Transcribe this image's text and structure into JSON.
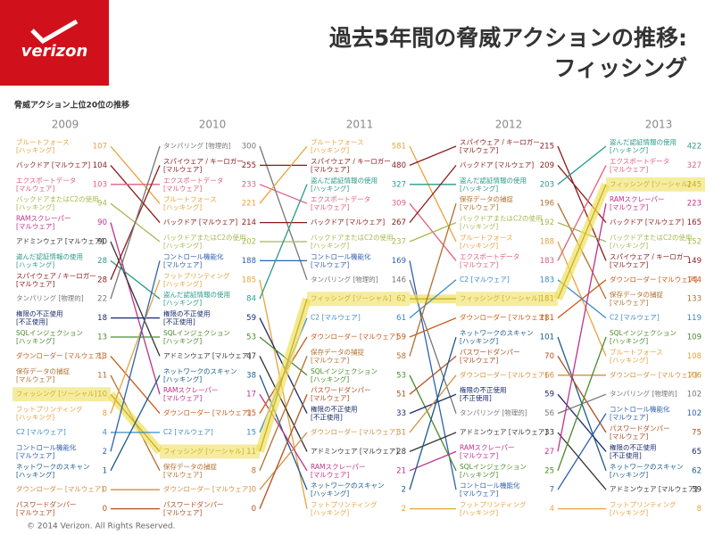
{
  "header": {
    "logo": "verizon",
    "title_line1": "過去5年間の脅威アクションの推移:",
    "title_line2": "フィッシング"
  },
  "subtitle": "脅威アクション上位20位の推移",
  "footer": "© 2014 Verizon. All Rights Reserved.",
  "columns": [
    {
      "year": "2009",
      "items": [
        {
          "label": "ブルートフォース",
          "sub": "[ハッキング]",
          "value": 107,
          "color": "#e8a33c"
        },
        {
          "label": "バックドア [マルウェア]",
          "sub": "",
          "value": 104,
          "color": "#8b1a1a"
        },
        {
          "label": "エクスポートデータ",
          "sub": "[マルウェア]",
          "value": 103,
          "color": "#e06080"
        },
        {
          "label": "バックドアまたはC2の使用",
          "sub": "[ハッキング]",
          "value": 94,
          "color": "#a8b850"
        },
        {
          "label": "RAMスクレーパー",
          "sub": "[マルウェア]",
          "value": 90,
          "color": "#c0308a"
        },
        {
          "label": "アドミンウェア [マルウェア]",
          "sub": "",
          "value": 90,
          "color": "#333333"
        },
        {
          "label": "盗んだ認証情報の使用",
          "sub": "[ハッキング]",
          "value": 28,
          "color": "#2a9a8a"
        },
        {
          "label": "スパイウェア / キーロガー",
          "sub": "[マルウェア]",
          "value": 28,
          "color": "#8b1a1a"
        },
        {
          "label": "タンパリング [物理的]",
          "sub": "",
          "value": 22,
          "color": "#777777"
        },
        {
          "label": "権限の不正使用",
          "sub": "[不正使用]",
          "value": 18,
          "color": "#1a2a6a"
        },
        {
          "label": "SQLインジェクション",
          "sub": "[ハッキング]",
          "value": 13,
          "color": "#4a8a2a"
        },
        {
          "label": "ダウンローダー [マルウェア]",
          "sub": "",
          "value": 13,
          "color": "#c85a1a"
        },
        {
          "label": "保存データの捕捉",
          "sub": "[マルウェア]",
          "value": 11,
          "color": "#b07030"
        },
        {
          "label": "フィッシング [ソーシャル]",
          "sub": "",
          "value": 10,
          "color": "#c8b020",
          "highlight": true
        },
        {
          "label": "フットプリンティング",
          "sub": "[ハッキング]",
          "value": 8,
          "color": "#e8a33c"
        },
        {
          "label": "C2 [マルウェア]",
          "sub": "",
          "value": 4,
          "color": "#3a8ac8"
        },
        {
          "label": "コントロール機能化",
          "sub": "[マルウェア]",
          "value": 2,
          "color": "#3060b0"
        },
        {
          "label": "ネットワークのスキャン",
          "sub": "[ハッキング]",
          "value": 1,
          "color": "#1a5a8a"
        },
        {
          "label": "ダウンローダー [マルウェア]",
          "sub": "",
          "value": 0,
          "color": "#d09040"
        },
        {
          "label": "パスワードダンパー",
          "sub": "[マルウェア]",
          "value": 0,
          "color": "#b05020"
        }
      ]
    },
    {
      "year": "2010",
      "items": [
        {
          "label": "タンパリング [物理的]",
          "sub": "",
          "value": 300,
          "color": "#777777"
        },
        {
          "label": "スパイウェア / キーロガー",
          "sub": "[マルウェア]",
          "value": 255,
          "color": "#8b1a1a"
        },
        {
          "label": "エクスポートデータ",
          "sub": "[マルウェア]",
          "value": 233,
          "color": "#e06080"
        },
        {
          "label": "ブルートフォース",
          "sub": "[ハッキング]",
          "value": 221,
          "color": "#e8a33c"
        },
        {
          "label": "バックドア [マルウェア]",
          "sub": "",
          "value": 214,
          "color": "#8b1a1a"
        },
        {
          "label": "バックドアまたはC2の使用",
          "sub": "[ハッキング]",
          "value": 202,
          "color": "#a8b850"
        },
        {
          "label": "コントロール機能化",
          "sub": "[マルウェア]",
          "value": 188,
          "color": "#3060b0"
        },
        {
          "label": "フットプリンティング",
          "sub": "[ハッキング]",
          "value": 185,
          "color": "#e8a33c"
        },
        {
          "label": "盗んだ認証情報の使用",
          "sub": "[ハッキング]",
          "value": 84,
          "color": "#2a9a8a"
        },
        {
          "label": "権限の不正使用",
          "sub": "[不正使用]",
          "value": 59,
          "color": "#1a2a6a"
        },
        {
          "label": "SQLインジェクション",
          "sub": "[ハッキング]",
          "value": 53,
          "color": "#4a8a2a"
        },
        {
          "label": "アドミンウェア [マルウェア]",
          "sub": "",
          "value": 47,
          "color": "#333333"
        },
        {
          "label": "ネットワークのスキャン",
          "sub": "[ハッキング]",
          "value": 38,
          "color": "#1a5a8a"
        },
        {
          "label": "RAMスクレーパー",
          "sub": "[マルウェア]",
          "value": 17,
          "color": "#c0308a"
        },
        {
          "label": "ダウンローダー [マルウェア]",
          "sub": "",
          "value": 15,
          "color": "#c85a1a"
        },
        {
          "label": "C2 [マルウェア]",
          "sub": "",
          "value": 15,
          "color": "#3a8ac8"
        },
        {
          "label": "フィッシング [ソーシャル]",
          "sub": "",
          "value": 11,
          "color": "#c8b020",
          "highlight": true
        },
        {
          "label": "保存データの捕捉",
          "sub": "[マルウェア]",
          "value": 8,
          "color": "#b07030"
        },
        {
          "label": "ダウンローダー [マルウェア]",
          "sub": "",
          "value": 0,
          "color": "#d09040"
        },
        {
          "label": "パスワードダンパー",
          "sub": "[マルウェア]",
          "value": 0,
          "color": "#b05020"
        }
      ]
    },
    {
      "year": "2011",
      "items": [
        {
          "label": "ブルートフォース",
          "sub": "[ハッキング]",
          "value": 581,
          "color": "#e8a33c"
        },
        {
          "label": "スパイウェア / キーロガー",
          "sub": "[マルウェア]",
          "value": 480,
          "color": "#8b1a1a"
        },
        {
          "label": "盗んだ認証情報の使用",
          "sub": "[ハッキング]",
          "value": 327,
          "color": "#2a9a8a"
        },
        {
          "label": "エクスポートデータ",
          "sub": "[マルウェア]",
          "value": 309,
          "color": "#e06080"
        },
        {
          "label": "バックドア [マルウェア]",
          "sub": "",
          "value": 267,
          "color": "#8b1a1a"
        },
        {
          "label": "バックドアまたはC2の使用",
          "sub": "[ハッキング]",
          "value": 237,
          "color": "#a8b850"
        },
        {
          "label": "コントロール機能化",
          "sub": "[マルウェア]",
          "value": 169,
          "color": "#3060b0"
        },
        {
          "label": "タンパリング [物理的]",
          "sub": "",
          "value": 146,
          "color": "#777777"
        },
        {
          "label": "フィッシング [ソーシャル]",
          "sub": "",
          "value": 62,
          "color": "#c8b020",
          "highlight": true
        },
        {
          "label": "C2 [マルウェア]",
          "sub": "",
          "value": 61,
          "color": "#3a8ac8"
        },
        {
          "label": "ダウンローダー [マルウェア]",
          "sub": "",
          "value": 59,
          "color": "#c85a1a"
        },
        {
          "label": "保存データの捕捉",
          "sub": "[マルウェア]",
          "value": 58,
          "color": "#b07030"
        },
        {
          "label": "SQLインジェクション",
          "sub": "[ハッキング]",
          "value": 53,
          "color": "#4a8a2a"
        },
        {
          "label": "パスワードダンパー",
          "sub": "[マルウェア]",
          "value": 51,
          "color": "#b05020"
        },
        {
          "label": "権限の不正使用",
          "sub": "[不正使用]",
          "value": 33,
          "color": "#1a2a6a"
        },
        {
          "label": "ダウンローダー [マルウェア]",
          "sub": "",
          "value": 31,
          "color": "#d09040"
        },
        {
          "label": "アドミンウェア [マルウェア]",
          "sub": "",
          "value": 28,
          "color": "#333333"
        },
        {
          "label": "RAMスクレーパー",
          "sub": "[マルウェア]",
          "value": 21,
          "color": "#c0308a"
        },
        {
          "label": "ネットワークのスキャン",
          "sub": "[ハッキング]",
          "value": 2,
          "color": "#1a5a8a"
        },
        {
          "label": "フットプリンティング",
          "sub": "[ハッキング]",
          "value": 2,
          "color": "#e8a33c"
        }
      ]
    },
    {
      "year": "2012",
      "items": [
        {
          "label": "スパイウェア / キーロガー",
          "sub": "[マルウェア]",
          "value": 215,
          "color": "#8b1a1a"
        },
        {
          "label": "バックドア [マルウェア]",
          "sub": "",
          "value": 209,
          "color": "#8b1a1a"
        },
        {
          "label": "盗んだ認証情報の使用",
          "sub": "[ハッキング]",
          "value": 203,
          "color": "#2a9a8a"
        },
        {
          "label": "保存データの捕捉",
          "sub": "[マルウェア]",
          "value": 196,
          "color": "#b07030"
        },
        {
          "label": "バックドアまたはC2の使用",
          "sub": "[ハッキング]",
          "value": 192,
          "color": "#a8b850"
        },
        {
          "label": "ブルートフォース",
          "sub": "[ハッキング]",
          "value": 188,
          "color": "#e8a33c"
        },
        {
          "label": "エクスポートデータ",
          "sub": "[マルウェア]",
          "value": 183,
          "color": "#e06080"
        },
        {
          "label": "C2 [マルウェア]",
          "sub": "",
          "value": 183,
          "color": "#3a8ac8"
        },
        {
          "label": "フィッシング [ソーシャル]",
          "sub": "",
          "value": 181,
          "color": "#c8b020",
          "highlight": true
        },
        {
          "label": "ダウンローダー [マルウェア]",
          "sub": "",
          "value": 181,
          "color": "#c85a1a"
        },
        {
          "label": "ネットワークのスキャン",
          "sub": "[ハッキング]",
          "value": 101,
          "color": "#1a5a8a"
        },
        {
          "label": "パスワードダンパー",
          "sub": "[マルウェア]",
          "value": 70,
          "color": "#b05020"
        },
        {
          "label": "ダウンローダー [マルウェア]",
          "sub": "",
          "value": 66,
          "color": "#d09040"
        },
        {
          "label": "権限の不正使用",
          "sub": "[不正使用]",
          "value": 59,
          "color": "#1a2a6a"
        },
        {
          "label": "タンパリング [物理的]",
          "sub": "",
          "value": 56,
          "color": "#777777"
        },
        {
          "label": "アドミンウェア [マルウェア]",
          "sub": "",
          "value": 33,
          "color": "#333333"
        },
        {
          "label": "RAMスクレーパー",
          "sub": "[マルウェア]",
          "value": 27,
          "color": "#c0308a"
        },
        {
          "label": "SQLインジェクション",
          "sub": "[ハッキング]",
          "value": 25,
          "color": "#4a8a2a"
        },
        {
          "label": "コントロール機能化",
          "sub": "[マルウェア]",
          "value": 7,
          "color": "#3060b0"
        },
        {
          "label": "フットプリンティング",
          "sub": "[ハッキング]",
          "value": 4,
          "color": "#e8a33c"
        }
      ]
    },
    {
      "year": "2013",
      "items": [
        {
          "label": "盗んだ認証情報の使用",
          "sub": "[ハッキング]",
          "value": 422,
          "color": "#2a9a8a"
        },
        {
          "label": "エクスポートデータ",
          "sub": "[マルウェア]",
          "value": 327,
          "color": "#e06080"
        },
        {
          "label": "フィッシング [ソーシャル]",
          "sub": "",
          "value": 245,
          "color": "#c8b020",
          "highlight": true
        },
        {
          "label": "RAMスクレーパー",
          "sub": "[マルウェア]",
          "value": 223,
          "color": "#c0308a"
        },
        {
          "label": "バックドア [マルウェア]",
          "sub": "",
          "value": 165,
          "color": "#8b1a1a"
        },
        {
          "label": "バックドアまたはC2の使用",
          "sub": "[ハッキング]",
          "value": 152,
          "color": "#a8b850"
        },
        {
          "label": "スパイウェア / キーロガー",
          "sub": "[マルウェア]",
          "value": 149,
          "color": "#8b1a1a"
        },
        {
          "label": "ダウンローダー [マルウェア]",
          "sub": "",
          "value": 144,
          "color": "#c85a1a"
        },
        {
          "label": "保存データの捕捉",
          "sub": "[マルウェア]",
          "value": 133,
          "color": "#b07030"
        },
        {
          "label": "C2 [マルウェア]",
          "sub": "",
          "value": 119,
          "color": "#3a8ac8"
        },
        {
          "label": "SQLインジェクション",
          "sub": "[ハッキング]",
          "value": 109,
          "color": "#4a8a2a"
        },
        {
          "label": "ブルートフォース",
          "sub": "[ハッキング]",
          "value": 108,
          "color": "#e8a33c"
        },
        {
          "label": "ダウンローダー [マルウェア]",
          "sub": "",
          "value": 106,
          "color": "#d09040"
        },
        {
          "label": "タンパリング [物理的]",
          "sub": "",
          "value": 102,
          "color": "#777777"
        },
        {
          "label": "コントロール機能化",
          "sub": "[マルウェア]",
          "value": 102,
          "color": "#3060b0"
        },
        {
          "label": "パスワードダンパー",
          "sub": "[マルウェア]",
          "value": 75,
          "color": "#b05020"
        },
        {
          "label": "権限の不正使用",
          "sub": "[不正使用]",
          "value": 65,
          "color": "#1a2a6a"
        },
        {
          "label": "ネットワークのスキャン",
          "sub": "[ハッキング]",
          "value": 62,
          "color": "#1a5a8a"
        },
        {
          "label": "アドミンウェア [マルウェア]",
          "sub": "",
          "value": 39,
          "color": "#333333"
        },
        {
          "label": "フットプリンティング",
          "sub": "[ハッキング]",
          "value": 8,
          "color": "#e8a33c"
        }
      ]
    }
  ]
}
